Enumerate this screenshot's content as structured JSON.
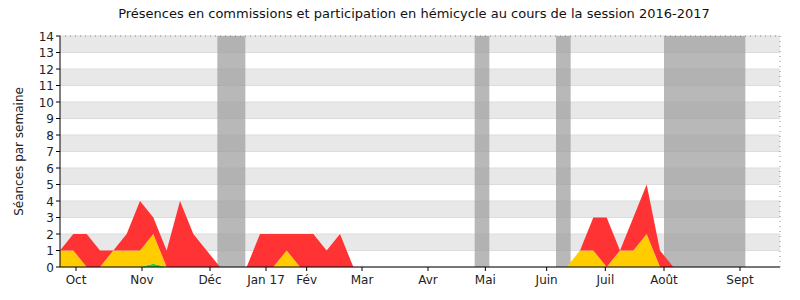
{
  "chart_data": {
    "type": "area",
    "title": "Présences en commissions et participation en hémicycle au cours de la session 2016-2017",
    "y_label": "Séances par semaine",
    "stacked": true,
    "grid": true,
    "x": [
      0,
      1,
      2,
      3,
      4,
      5,
      6,
      7,
      8,
      9,
      10,
      11,
      12,
      13,
      14,
      15,
      16,
      17,
      18,
      19,
      20,
      21,
      22,
      23,
      24,
      25,
      26,
      27,
      28,
      29,
      30,
      31,
      32,
      33,
      34,
      35,
      36,
      37,
      38,
      39,
      40,
      41,
      42,
      43,
      44,
      45,
      46,
      47,
      48,
      49,
      50,
      51,
      52,
      53,
      54
    ],
    "xlim": [
      0,
      54
    ],
    "xticks": [
      {
        "value": 1.2,
        "label": "Oct"
      },
      {
        "value": 6.15,
        "label": "Nov"
      },
      {
        "value": 11.25,
        "label": "Déc"
      },
      {
        "value": 15.45,
        "label": "Jan 17"
      },
      {
        "value": 18.5,
        "label": "Fév"
      },
      {
        "value": 22.65,
        "label": "Mar"
      },
      {
        "value": 27.6,
        "label": "Avr"
      },
      {
        "value": 31.9,
        "label": "Mai"
      },
      {
        "value": 36.5,
        "label": "Juin"
      },
      {
        "value": 40.9,
        "label": "Juil"
      },
      {
        "value": 45.3,
        "label": "Août"
      },
      {
        "value": 51,
        "label": "Sept"
      }
    ],
    "ylim": [
      0,
      14
    ],
    "yticks": [
      0,
      1,
      2,
      3,
      4,
      5,
      6,
      7,
      8,
      9,
      10,
      11,
      12,
      13,
      14
    ],
    "shaded_ranges": [
      [
        11.8,
        13.9
      ],
      [
        31.1,
        32.2
      ],
      [
        37.2,
        38.3
      ],
      [
        45.3,
        51.4
      ]
    ],
    "series": [
      {
        "color": "#33cc33",
        "values": [
          0,
          0,
          0,
          0,
          0,
          0,
          0,
          0.2,
          0,
          0,
          0,
          0,
          0,
          0,
          0,
          0,
          0,
          0,
          0,
          0,
          0,
          0,
          0,
          0,
          0,
          0,
          0,
          0,
          0,
          0,
          0,
          0,
          0,
          0,
          0,
          0,
          0,
          0,
          0,
          0,
          0,
          0,
          0,
          0,
          0,
          0,
          0,
          0,
          0,
          0,
          0,
          0,
          0,
          0,
          0
        ]
      },
      {
        "color": "#ffcc00",
        "values": [
          1,
          1,
          0,
          0,
          1,
          1,
          1,
          1.8,
          0,
          0,
          0,
          0,
          0,
          0,
          0,
          0,
          0,
          1,
          0,
          0,
          0,
          0,
          0,
          0,
          0,
          0,
          0,
          0,
          0,
          0,
          0,
          0,
          0,
          0,
          0,
          0,
          0,
          0,
          0,
          1,
          1,
          0,
          1,
          1,
          2,
          0,
          0,
          0,
          0,
          0,
          0,
          0,
          0,
          0,
          0
        ]
      },
      {
        "color": "#ff3333",
        "values": [
          0,
          1,
          2,
          1,
          0,
          1,
          3,
          1,
          1,
          4,
          2,
          1,
          0,
          0,
          0,
          2,
          2,
          1,
          2,
          2,
          1,
          2,
          0,
          0,
          0,
          0,
          0,
          0,
          0,
          0,
          0,
          0,
          0,
          0,
          0,
          0,
          0,
          0,
          0,
          0,
          2,
          3,
          0,
          2,
          3,
          1,
          0,
          0,
          0,
          0,
          0,
          0,
          0,
          0,
          0
        ]
      }
    ]
  }
}
